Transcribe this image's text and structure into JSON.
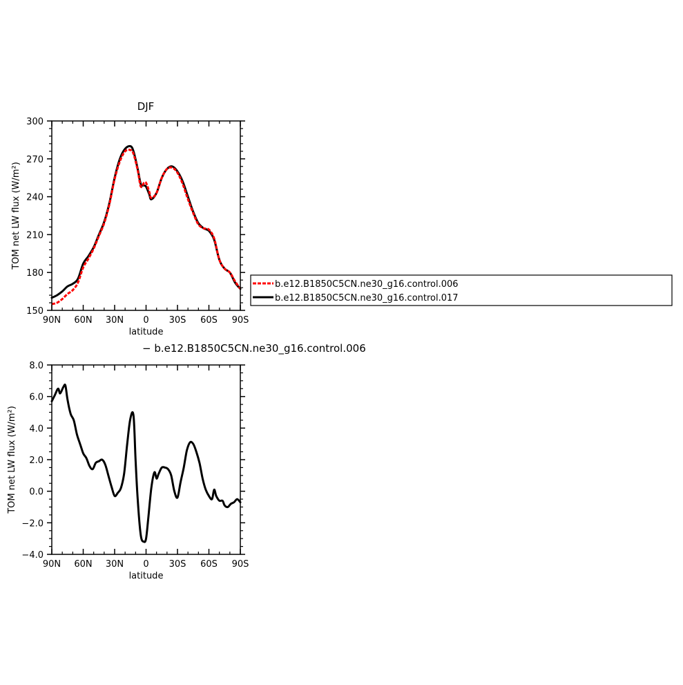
{
  "chart_data": [
    {
      "type": "line",
      "title": "DJF",
      "xlabel": "latitude",
      "ylabel": "TOM net LW flux (W/m²)",
      "xlim": [
        90,
        -90
      ],
      "ylim": [
        150,
        300
      ],
      "x_ticks": [
        90,
        60,
        30,
        0,
        -30,
        -60,
        -90
      ],
      "x_tick_labels": [
        "90N",
        "60N",
        "30N",
        "0",
        "30S",
        "60S",
        "90S"
      ],
      "y_ticks": [
        150,
        180,
        210,
        240,
        270,
        300
      ],
      "y_tick_labels": [
        "150",
        "180",
        "210",
        "240",
        "270",
        "300"
      ],
      "legend": {
        "position": "right",
        "entries": [
          {
            "label": "b.e12.B1850C5CN.ne30_g16.control.006",
            "color": "#ff0000",
            "style": "dashed"
          },
          {
            "label": "b.e12.B1850C5CN.ne30_g16.control.017",
            "color": "#000000",
            "style": "solid"
          }
        ]
      },
      "series": [
        {
          "name": "b.e12.B1850C5CN.ne30_g16.control.017",
          "color": "#000000",
          "style": "solid",
          "x": [
            90,
            85,
            80,
            75,
            70,
            65,
            60,
            55,
            50,
            45,
            40,
            35,
            30,
            25,
            20,
            15,
            12,
            8,
            5,
            2,
            0,
            -3,
            -5,
            -10,
            -15,
            -20,
            -25,
            -30,
            -35,
            -40,
            -45,
            -50,
            -55,
            -60,
            -65,
            -70,
            -75,
            -80,
            -85,
            -90
          ],
          "values": [
            160,
            162,
            165,
            169,
            171,
            175,
            187,
            193,
            200,
            210,
            220,
            235,
            255,
            270,
            278,
            280,
            276,
            262,
            250,
            249,
            248,
            242,
            238,
            243,
            255,
            262,
            264,
            260,
            252,
            240,
            228,
            219,
            215,
            213,
            206,
            190,
            183,
            180,
            172,
            167
          ]
        },
        {
          "name": "b.e12.B1850C5CN.ne30_g16.control.006",
          "color": "#ff0000",
          "style": "dashed",
          "x": [
            90,
            85,
            80,
            75,
            70,
            65,
            60,
            55,
            50,
            45,
            40,
            35,
            30,
            25,
            20,
            15,
            12,
            8,
            5,
            2,
            0,
            -3,
            -5,
            -10,
            -15,
            -20,
            -25,
            -30,
            -35,
            -40,
            -45,
            -50,
            -55,
            -60,
            -65,
            -70,
            -75,
            -80,
            -85,
            -90
          ],
          "values": [
            155,
            156,
            159,
            163,
            166,
            172,
            184,
            191,
            199,
            209,
            219,
            234,
            254,
            268,
            276,
            277,
            274,
            261,
            248,
            251,
            251,
            244,
            239,
            243,
            255,
            262,
            263,
            259,
            250,
            238,
            227,
            218,
            215,
            214,
            207,
            190,
            183,
            180,
            173,
            167
          ]
        }
      ]
    },
    {
      "type": "line",
      "title": "− b.e12.B1850C5CN.ne30_g16.control.006",
      "xlabel": "latitude",
      "ylabel": "TOM net LW flux (W/m²)",
      "xlim": [
        90,
        -90
      ],
      "ylim": [
        -4,
        8
      ],
      "x_ticks": [
        90,
        60,
        30,
        0,
        -30,
        -60,
        -90
      ],
      "x_tick_labels": [
        "90N",
        "60N",
        "30N",
        "0",
        "30S",
        "60S",
        "90S"
      ],
      "y_ticks": [
        -4,
        -2,
        0,
        2,
        4,
        6,
        8
      ],
      "y_tick_labels": [
        "−4.0",
        "−2.0",
        "0.0",
        "2.0",
        "4.0",
        "6.0",
        "8.0"
      ],
      "series": [
        {
          "color": "#000000",
          "style": "solid",
          "x": [
            90,
            87,
            84,
            82,
            79,
            77,
            75,
            72,
            69,
            66,
            63,
            60,
            57,
            54,
            51,
            48,
            45,
            42,
            39,
            36,
            33,
            30,
            27,
            24,
            21,
            18,
            15,
            12,
            10,
            8,
            5,
            2,
            0,
            -2,
            -5,
            -8,
            -10,
            -12,
            -15,
            -18,
            -21,
            -24,
            -27,
            -30,
            -33,
            -36,
            -39,
            -42,
            -45,
            -48,
            -51,
            -54,
            -57,
            -60,
            -63,
            -65,
            -67,
            -70,
            -73,
            -75,
            -78,
            -81,
            -84,
            -87,
            -90
          ],
          "values": [
            5.7,
            6.1,
            6.5,
            6.2,
            6.6,
            6.7,
            5.8,
            4.9,
            4.5,
            3.6,
            3.0,
            2.4,
            2.1,
            1.6,
            1.4,
            1.8,
            1.9,
            2.0,
            1.7,
            1.0,
            0.3,
            -0.3,
            -0.1,
            0.2,
            1.1,
            3.0,
            4.6,
            4.8,
            2.0,
            -0.5,
            -2.8,
            -3.2,
            -3.0,
            -1.8,
            0.2,
            1.2,
            0.8,
            1.1,
            1.5,
            1.5,
            1.4,
            1.0,
            0.0,
            -0.4,
            0.6,
            1.5,
            2.6,
            3.1,
            3.0,
            2.5,
            1.8,
            0.8,
            0.1,
            -0.3,
            -0.5,
            0.1,
            -0.3,
            -0.6,
            -0.6,
            -0.9,
            -1.0,
            -0.8,
            -0.7,
            -0.5,
            -0.7
          ]
        }
      ]
    }
  ]
}
